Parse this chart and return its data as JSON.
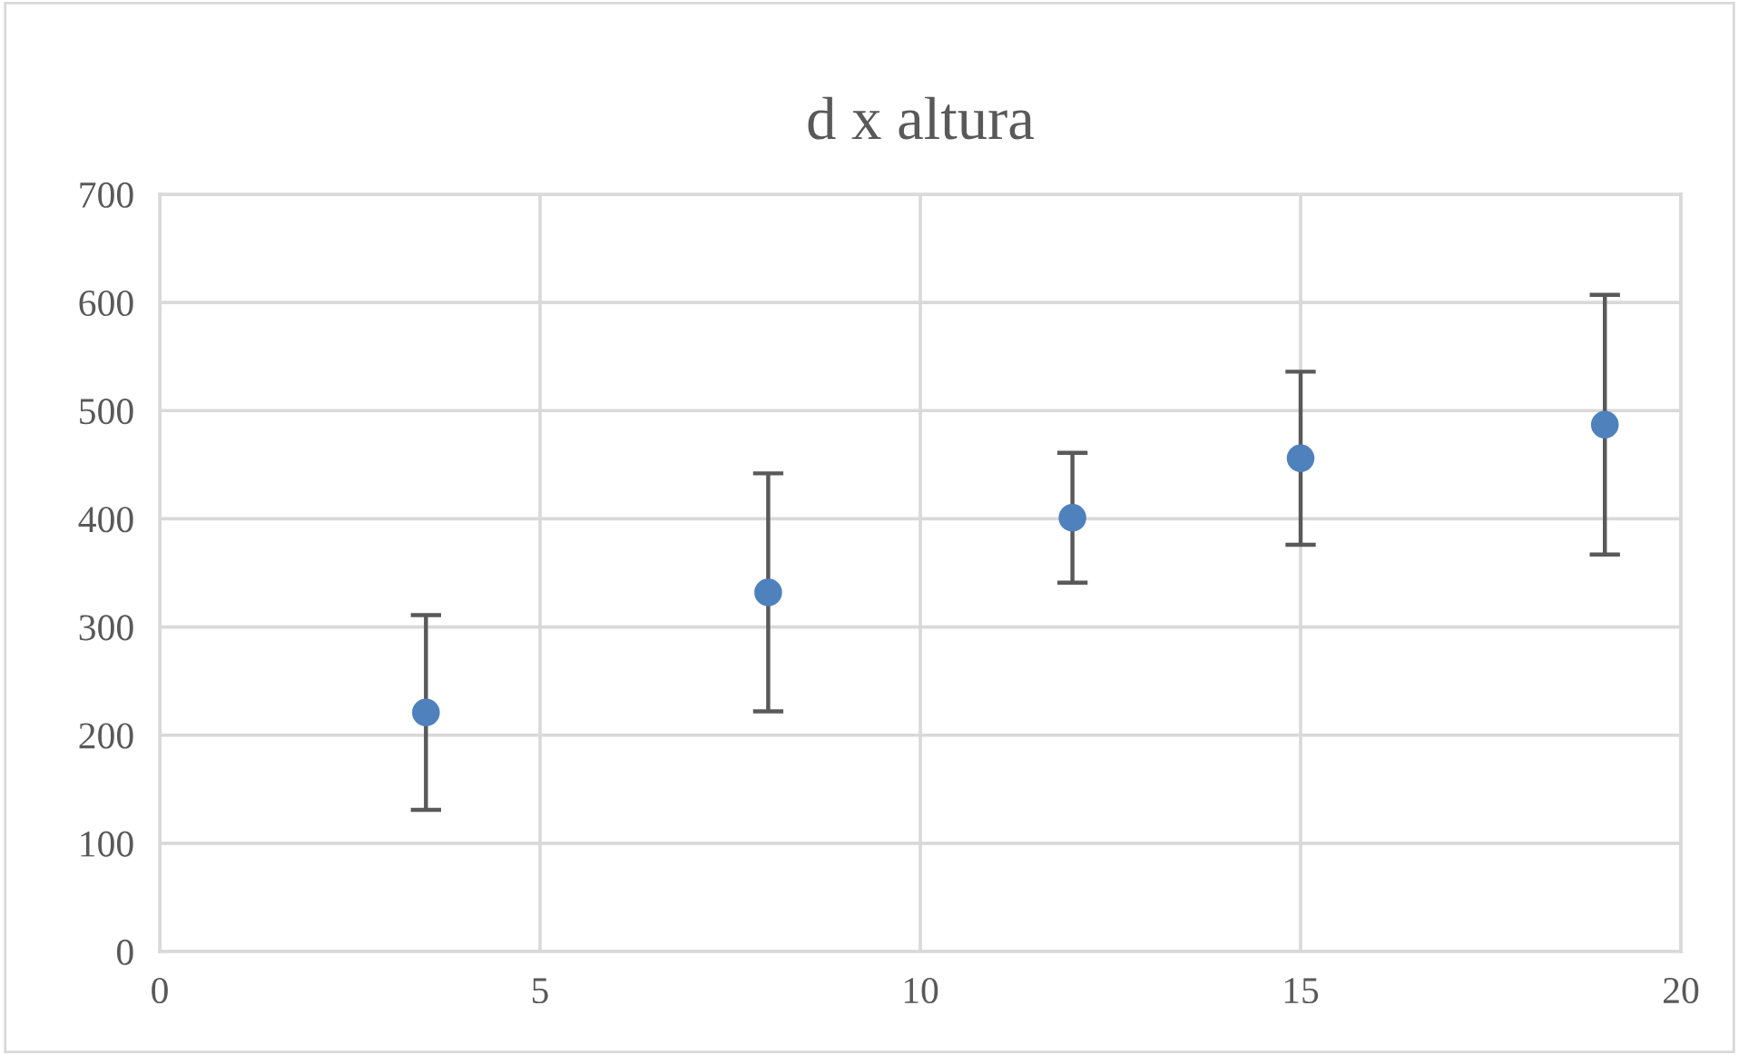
{
  "chart_data": {
    "type": "scatter",
    "title": "d x altura",
    "x": [
      3.5,
      8,
      12,
      15,
      19
    ],
    "series": [
      {
        "color": "#4f81bd",
        "values": [
          221,
          332,
          401,
          456,
          487
        ],
        "errors": [
          90,
          110,
          60,
          80,
          120
        ]
      }
    ],
    "xlim": [
      0,
      20
    ],
    "xticks": [
      0,
      5,
      10,
      15,
      20
    ],
    "ylim": [
      0,
      700
    ],
    "yticks": [
      0,
      100,
      200,
      300,
      400,
      500,
      600,
      700
    ],
    "grid": true,
    "marker": "circle"
  }
}
